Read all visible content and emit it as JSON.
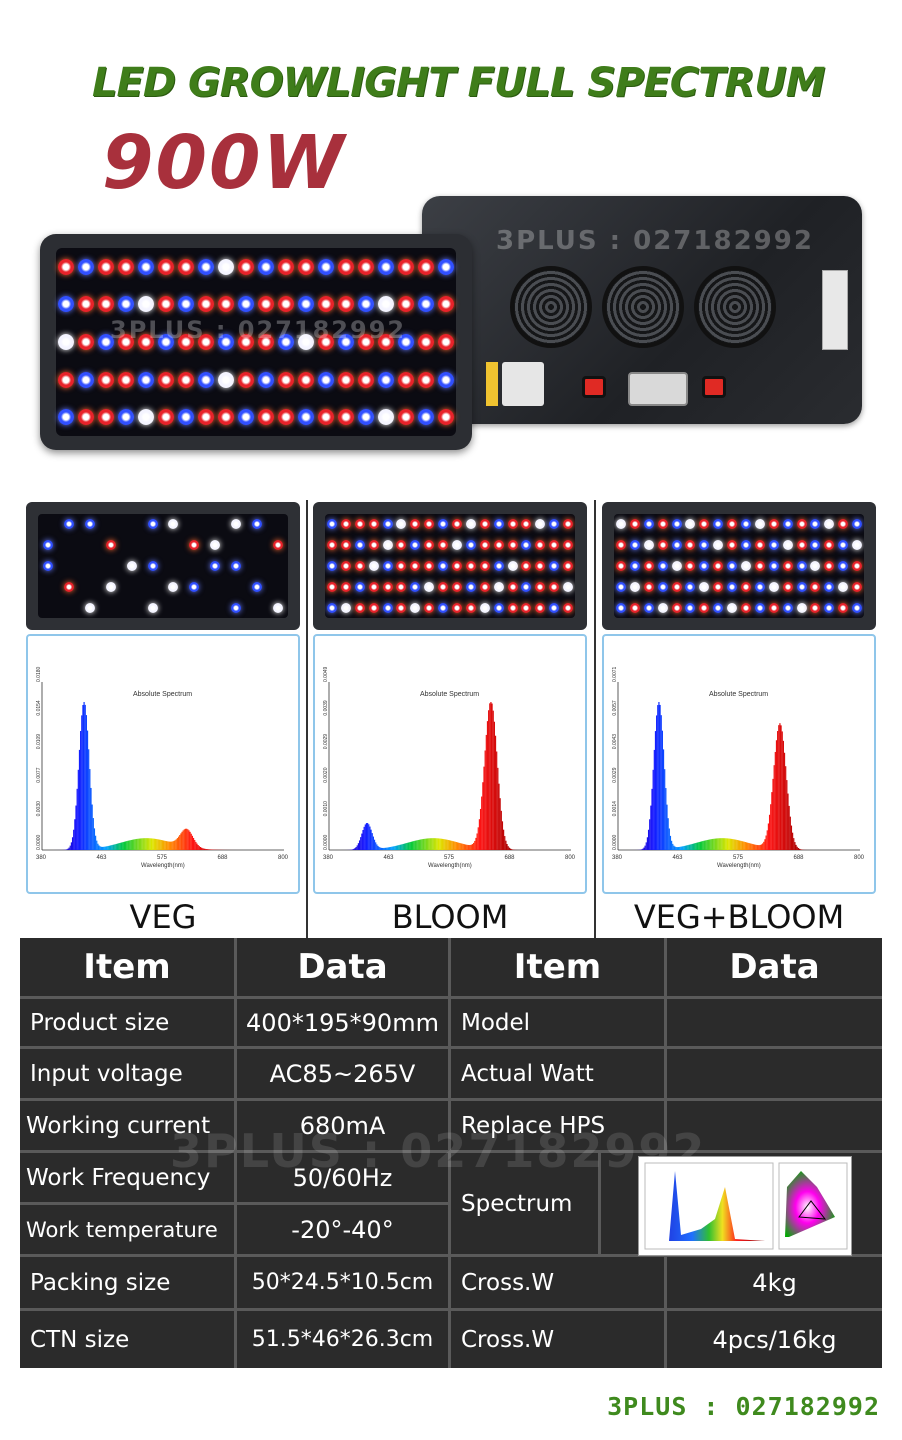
{
  "header": {
    "title": "LED GROWLIGHT FULL SPECTRUM",
    "power": "900W"
  },
  "watermark": "3PLUS : 027182992",
  "modes": [
    {
      "label": "VEG",
      "spectrum_title": "Absolute Spectrum",
      "x_ticks": [
        "380",
        "463",
        "575",
        "688",
        "800"
      ],
      "y_ticks": [
        "0.0000",
        "0.0030",
        "0.0077",
        "0.0109",
        "0.0154",
        "0.0180"
      ],
      "peaks": [
        {
          "nm": 452,
          "rel": 1.0
        },
        {
          "nm": 630,
          "rel": 0.12
        }
      ]
    },
    {
      "label": "BLOOM",
      "spectrum_title": "Absolute Spectrum",
      "x_ticks": [
        "380",
        "463",
        "575",
        "688",
        "800"
      ],
      "y_ticks": [
        "0.0000",
        "0.0010",
        "0.0020",
        "0.0029",
        "0.0039",
        "0.0049"
      ],
      "peaks": [
        {
          "nm": 445,
          "rel": 0.18
        },
        {
          "nm": 660,
          "rel": 1.0
        }
      ]
    },
    {
      "label": "VEG+BLOOM",
      "spectrum_title": "Absolute Spectrum",
      "x_ticks": [
        "380",
        "463",
        "575",
        "688",
        "800"
      ],
      "y_ticks": [
        "0.0000",
        "0.0014",
        "0.0029",
        "0.0043",
        "0.0057",
        "0.0071"
      ],
      "peaks": [
        {
          "nm": 450,
          "rel": 1.0
        },
        {
          "nm": 660,
          "rel": 0.85
        }
      ]
    }
  ],
  "axis_label": "Wavelength(nm)",
  "table": {
    "headers": [
      "Item",
      "Data",
      "Item",
      "Data"
    ],
    "rows": [
      {
        "item1": "Product size",
        "data1": "400*195*90mm",
        "item2": "Model",
        "data2": ""
      },
      {
        "item1": "Input voltage",
        "data1": "AC85~265V",
        "item2": "Actual Watt",
        "data2": ""
      },
      {
        "item1": "Working current",
        "data1": "680mA",
        "item2": "Replace HPS",
        "data2": ""
      },
      {
        "item1": "Work Frequency",
        "data1": "50/60Hz",
        "item2": "Spectrum",
        "data2": ""
      },
      {
        "item1": "Work temperature",
        "data1": "-20°-40°",
        "item2": "",
        "data2": ""
      },
      {
        "item1": "Packing size",
        "data1": "50*24.5*10.5cm",
        "item2": "Cross.W",
        "data2": "4kg"
      },
      {
        "item1": "CTN size",
        "data1": "51.5*46*26.3cm",
        "item2": "Cross.W",
        "data2": "4pcs/16kg"
      }
    ]
  },
  "footer": {
    "brand": "3PLUS : 027182992"
  },
  "colors": {
    "title_green": "#3f7d1a",
    "power_red": "#a8303c",
    "table_bg": "#2b2b2b",
    "led_red": "#e8232a",
    "led_blue": "#2a4bff"
  }
}
